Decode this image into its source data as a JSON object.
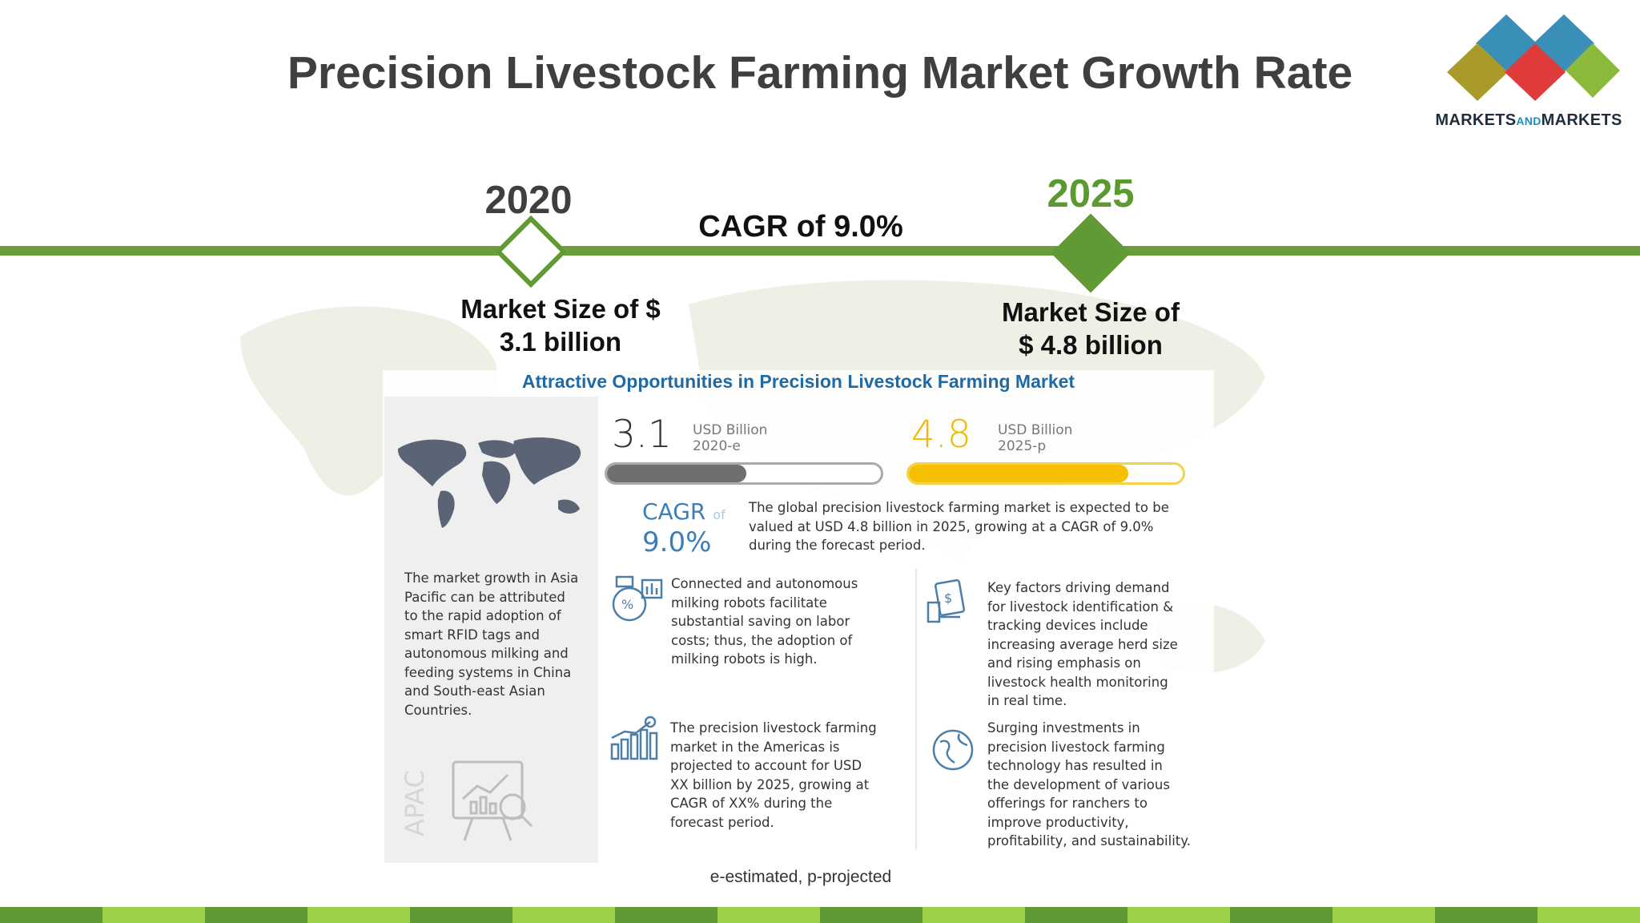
{
  "title": "Precision Livestock Farming Market Growth Rate",
  "logo": {
    "part1": "MARKETS",
    "part2": "AND",
    "part3": "MARKETS"
  },
  "timeline": {
    "start_year": "2020",
    "end_year": "2025",
    "cagr": "CAGR of 9.0%",
    "start_size_line1": "Market Size of $",
    "start_size_line2": "3.1 billion",
    "end_size_line1": "Market Size of",
    "end_size_line2": "$ 4.8 billion"
  },
  "infographic": {
    "title": "Attractive Opportunities in Precision Livestock Farming Market",
    "value_2020": "3.1",
    "unit_2020": "USD Billion",
    "tag_2020": "2020-e",
    "value_2025": "4.8",
    "unit_2025": "USD Billion",
    "tag_2025": "2025-p",
    "bar_2020_fraction": 0.51,
    "bar_2025_fraction": 0.8,
    "cagr_label": "CAGR",
    "cagr_of": "of",
    "cagr_value": "9.0%",
    "summary": [
      "The global precision livestock farming market is expected to be",
      "valued at USD 4.8 billion in 2025, growing at a CAGR of 9.0%",
      "during the forecast period."
    ],
    "apac_text": [
      "The market growth in Asia",
      "Pacific can be attributed",
      "to the rapid adoption of",
      "smart RFID tags and",
      "autonomous milking and",
      "feeding systems in China",
      "and South-east Asian",
      "Countries."
    ],
    "apac_label": "APAC",
    "robots_text": [
      "Connected and autonomous",
      "milking robots facilitate",
      "substantial saving on labor",
      "costs; thus, the adoption of",
      "milking robots is high."
    ],
    "factors_text": [
      "Key factors driving demand",
      "for livestock identification &",
      "tracking devices include",
      "increasing average herd size",
      "and rising emphasis on",
      "livestock health monitoring",
      "in real time."
    ],
    "americas_text": [
      "The precision livestock farming",
      "market in the Americas is",
      "projected to account for USD",
      "XX billion by 2025, growing at",
      "CAGR of XX% during the",
      "forecast period."
    ],
    "investments_text": [
      "Surging investments in",
      "precision livestock farming",
      "technology has resulted in",
      "the development of various",
      "offerings for ranchers to",
      "improve productivity,",
      "profitability, and sustainability."
    ]
  },
  "footnote": "e-estimated, p-projected",
  "colors": {
    "accent_green": "#5f9a35",
    "year_2025": "#5a9a30",
    "bar_grey": "#6f6f6f",
    "bar_yellow": "#f5c000",
    "infographic_blue": "#1f6aa5"
  },
  "icons": [
    "logo-diamonds-icon",
    "world-map-icon",
    "presentation-chart-icon",
    "milking-robot-icon",
    "id-tag-icon",
    "bar-chart-dollar-icon",
    "globe-icon"
  ]
}
